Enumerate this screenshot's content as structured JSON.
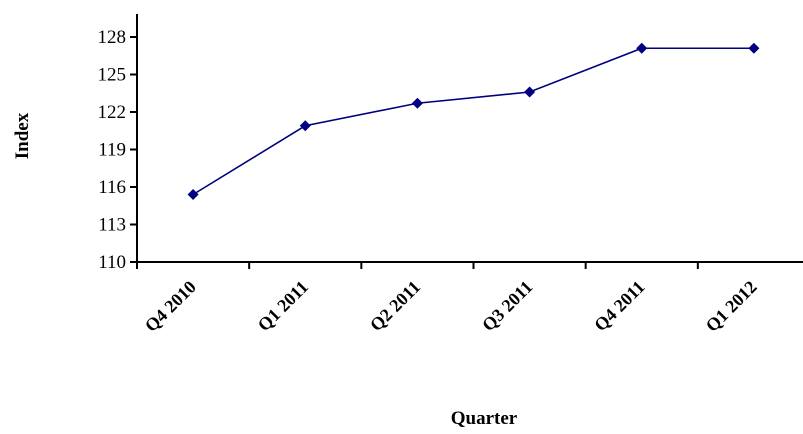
{
  "chart_data": {
    "type": "line",
    "title": "",
    "xlabel": "Quarter",
    "ylabel": "Index",
    "categories": [
      "Q4 2010",
      "Q1 2011",
      "Q2 2011",
      "Q3 2011",
      "Q4 2011",
      "Q1 2012"
    ],
    "series": [
      {
        "values": [
          115.4,
          120.9,
          122.7,
          123.6,
          127.1,
          127.1
        ]
      }
    ],
    "ylim": [
      110,
      130
    ],
    "yticks": [
      110,
      113,
      116,
      119,
      122,
      125,
      128
    ],
    "grid": false,
    "legend": "none",
    "marker": "diamond",
    "colors": {
      "series": "#000080",
      "axis": "#000000"
    }
  }
}
